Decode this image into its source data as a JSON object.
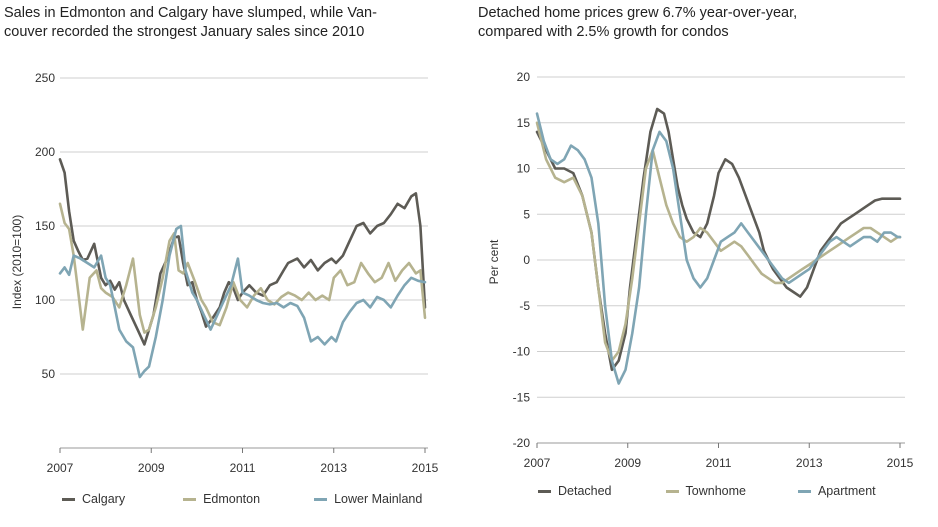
{
  "colors": {
    "dark": "#5d5b55",
    "tan": "#b6b38f",
    "blue": "#7fa5b4",
    "grid": "#cfcfcf"
  },
  "chart_data": [
    {
      "type": "line",
      "title": "Sales in Edmonton and Calgary have slumped, while Vancouver recorded the strongest January sales since 2010",
      "title_lines": [
        "Sales in Edmonton and Calgary have slumped, while Van-",
        "couver recorded the strongest January sales since 2010"
      ],
      "xlabel": "",
      "ylabel": "Index (2010=100)",
      "xlim": [
        2007,
        2015
      ],
      "ylim": [
        0,
        250
      ],
      "yticks": [
        50,
        100,
        150,
        200,
        250
      ],
      "xticks": [
        2007,
        2009,
        2011,
        2013,
        2015
      ],
      "xtick_labels": [
        "2007",
        "2009",
        "2011",
        "2013",
        "2015"
      ],
      "grid": true,
      "legend": "bottom",
      "series": [
        {
          "name": "Calgary",
          "color": "#5d5b55",
          "x": [
            2007.0,
            2007.1,
            2007.2,
            2007.3,
            2007.4,
            2007.5,
            2007.6,
            2007.75,
            2007.9,
            2008.0,
            2008.1,
            2008.2,
            2008.3,
            2008.4,
            2008.55,
            2008.7,
            2008.85,
            2008.95,
            2009.05,
            2009.2,
            2009.35,
            2009.5,
            2009.6,
            2009.7,
            2009.8,
            2009.9,
            2010.0,
            2010.1,
            2010.2,
            2010.35,
            2010.5,
            2010.6,
            2010.7,
            2010.8,
            2010.9,
            2011.0,
            2011.15,
            2011.3,
            2011.45,
            2011.6,
            2011.75,
            2011.9,
            2012.0,
            2012.2,
            2012.35,
            2012.5,
            2012.65,
            2012.8,
            2012.95,
            2013.05,
            2013.2,
            2013.35,
            2013.5,
            2013.65,
            2013.8,
            2013.95,
            2014.1,
            2014.25,
            2014.4,
            2014.55,
            2014.7,
            2014.8,
            2014.9,
            2015.0
          ],
          "y": [
            195,
            186,
            160,
            140,
            133,
            127,
            128,
            138,
            115,
            110,
            113,
            107,
            112,
            100,
            90,
            80,
            70,
            80,
            90,
            118,
            128,
            142,
            143,
            125,
            110,
            112,
            100,
            92,
            82,
            88,
            95,
            105,
            112,
            108,
            100,
            105,
            110,
            105,
            103,
            110,
            112,
            120,
            125,
            128,
            122,
            127,
            120,
            125,
            128,
            125,
            130,
            140,
            150,
            152,
            145,
            150,
            152,
            158,
            165,
            162,
            170,
            172,
            150,
            95
          ]
        },
        {
          "name": "Edmonton",
          "color": "#b6b38f",
          "x": [
            2007.0,
            2007.1,
            2007.2,
            2007.3,
            2007.4,
            2007.5,
            2007.65,
            2007.8,
            2007.9,
            2008.0,
            2008.15,
            2008.3,
            2008.45,
            2008.6,
            2008.75,
            2008.85,
            2008.95,
            2009.1,
            2009.25,
            2009.4,
            2009.5,
            2009.6,
            2009.7,
            2009.8,
            2009.95,
            2010.1,
            2010.2,
            2010.35,
            2010.5,
            2010.65,
            2010.8,
            2010.95,
            2011.1,
            2011.25,
            2011.4,
            2011.55,
            2011.7,
            2011.85,
            2012.0,
            2012.15,
            2012.3,
            2012.45,
            2012.6,
            2012.75,
            2012.9,
            2013.0,
            2013.15,
            2013.3,
            2013.45,
            2013.6,
            2013.75,
            2013.9,
            2014.05,
            2014.2,
            2014.35,
            2014.5,
            2014.65,
            2014.8,
            2014.9,
            2015.0
          ],
          "y": [
            165,
            152,
            148,
            130,
            105,
            80,
            115,
            120,
            108,
            105,
            102,
            95,
            110,
            128,
            90,
            78,
            80,
            95,
            115,
            140,
            145,
            120,
            118,
            125,
            113,
            100,
            95,
            85,
            83,
            95,
            112,
            100,
            95,
            103,
            108,
            100,
            97,
            102,
            105,
            103,
            100,
            105,
            100,
            103,
            100,
            115,
            120,
            110,
            112,
            125,
            118,
            112,
            115,
            125,
            113,
            120,
            125,
            118,
            120,
            88
          ]
        },
        {
          "name": "Lower Mainland",
          "color": "#7fa5b4",
          "x": [
            2007.0,
            2007.1,
            2007.2,
            2007.3,
            2007.45,
            2007.6,
            2007.75,
            2007.9,
            2008.0,
            2008.1,
            2008.2,
            2008.3,
            2008.45,
            2008.6,
            2008.75,
            2008.85,
            2008.95,
            2009.1,
            2009.25,
            2009.4,
            2009.55,
            2009.65,
            2009.75,
            2009.9,
            2010.0,
            2010.15,
            2010.3,
            2010.45,
            2010.6,
            2010.75,
            2010.9,
            2011.0,
            2011.15,
            2011.3,
            2011.45,
            2011.6,
            2011.75,
            2011.9,
            2012.05,
            2012.2,
            2012.35,
            2012.5,
            2012.65,
            2012.8,
            2012.95,
            2013.05,
            2013.2,
            2013.35,
            2013.5,
            2013.65,
            2013.8,
            2013.95,
            2014.1,
            2014.25,
            2014.4,
            2014.55,
            2014.7,
            2014.85,
            2015.0
          ],
          "y": [
            118,
            122,
            117,
            130,
            128,
            125,
            122,
            130,
            115,
            110,
            95,
            80,
            72,
            68,
            48,
            52,
            55,
            75,
            100,
            130,
            148,
            150,
            120,
            105,
            100,
            90,
            80,
            90,
            100,
            110,
            128,
            105,
            103,
            100,
            98,
            97,
            98,
            95,
            98,
            96,
            88,
            72,
            75,
            70,
            75,
            72,
            85,
            92,
            98,
            100,
            95,
            102,
            100,
            95,
            103,
            110,
            115,
            113,
            112
          ]
        }
      ]
    },
    {
      "type": "line",
      "title": "Detached home prices grew 6.7% year-over-year, compared with 2.5% growth for condos",
      "title_lines": [
        "Detached home prices grew 6.7% year-over-year,",
        "compared with 2.5% growth for condos"
      ],
      "xlabel": "",
      "ylabel": "Per cent",
      "xlim": [
        2007,
        2015
      ],
      "ylim": [
        -20,
        20
      ],
      "yticks": [
        -20,
        -15,
        -10,
        -5,
        0,
        5,
        10,
        15,
        20
      ],
      "ytick_labels": [
        "-20",
        "-15",
        "-10",
        "-5",
        "0",
        "5",
        "10",
        "15",
        "20"
      ],
      "xticks": [
        2007,
        2009,
        2011,
        2013,
        2015
      ],
      "xtick_labels": [
        "2007",
        "2009",
        "2011",
        "2013",
        "2015"
      ],
      "grid": true,
      "legend": "bottom",
      "series": [
        {
          "name": "Detached",
          "color": "#5d5b55",
          "x": [
            2007.0,
            2007.2,
            2007.4,
            2007.6,
            2007.8,
            2008.0,
            2008.2,
            2008.35,
            2008.5,
            2008.65,
            2008.8,
            2008.95,
            2009.05,
            2009.2,
            2009.35,
            2009.5,
            2009.65,
            2009.8,
            2009.9,
            2010.0,
            2010.1,
            2010.2,
            2010.3,
            2010.45,
            2010.6,
            2010.75,
            2010.9,
            2011.0,
            2011.15,
            2011.3,
            2011.45,
            2011.6,
            2011.75,
            2011.9,
            2012.0,
            2012.1,
            2012.2,
            2012.35,
            2012.5,
            2012.65,
            2012.8,
            2012.95,
            2013.1,
            2013.25,
            2013.4,
            2013.55,
            2013.7,
            2013.85,
            2014.0,
            2014.15,
            2014.3,
            2014.45,
            2014.6,
            2014.75,
            2014.9,
            2015.0
          ],
          "y": [
            14,
            12,
            10,
            10,
            9.5,
            7,
            3,
            -3,
            -8,
            -12,
            -11,
            -8,
            -3,
            3,
            9,
            14,
            16.5,
            16,
            14,
            11,
            8,
            6,
            4.5,
            3,
            2.5,
            4,
            7,
            9.5,
            11,
            10.5,
            9,
            7,
            5,
            3,
            1,
            0,
            -1,
            -2,
            -3,
            -3.5,
            -4,
            -3,
            -1,
            1,
            2,
            3,
            4,
            4.5,
            5,
            5.5,
            6,
            6.5,
            6.7,
            6.7,
            6.7,
            6.7
          ]
        },
        {
          "name": "Townhome",
          "color": "#b6b38f",
          "x": [
            2007.0,
            2007.2,
            2007.4,
            2007.6,
            2007.8,
            2008.0,
            2008.2,
            2008.35,
            2008.5,
            2008.65,
            2008.8,
            2008.95,
            2009.1,
            2009.25,
            2009.4,
            2009.55,
            2009.7,
            2009.85,
            2010.0,
            2010.15,
            2010.3,
            2010.45,
            2010.6,
            2010.75,
            2010.9,
            2011.05,
            2011.2,
            2011.35,
            2011.5,
            2011.65,
            2011.8,
            2011.95,
            2012.1,
            2012.25,
            2012.4,
            2012.55,
            2012.7,
            2012.85,
            2013.0,
            2013.15,
            2013.3,
            2013.45,
            2013.6,
            2013.75,
            2013.9,
            2014.05,
            2014.2,
            2014.35,
            2014.5,
            2014.65,
            2014.8,
            2014.95,
            2015.0
          ],
          "y": [
            15,
            11,
            9,
            8.5,
            9,
            7,
            3,
            -3,
            -9,
            -11,
            -10,
            -7,
            -2,
            4,
            10,
            12,
            9,
            6,
            4,
            2.5,
            2,
            2.5,
            3.5,
            3,
            2,
            1,
            1.5,
            2,
            1.5,
            0.5,
            -0.5,
            -1.5,
            -2,
            -2.5,
            -2.5,
            -2,
            -1.5,
            -1,
            -0.5,
            0,
            0.5,
            1,
            1.5,
            2,
            2.5,
            3,
            3.5,
            3.5,
            3,
            2.5,
            2,
            2.5,
            2.5
          ]
        },
        {
          "name": "Apartment",
          "color": "#7fa5b4",
          "x": [
            2007.0,
            2007.15,
            2007.3,
            2007.45,
            2007.6,
            2007.75,
            2007.9,
            2008.05,
            2008.2,
            2008.35,
            2008.5,
            2008.65,
            2008.8,
            2008.95,
            2009.1,
            2009.25,
            2009.4,
            2009.55,
            2009.7,
            2009.85,
            2010.0,
            2010.15,
            2010.3,
            2010.45,
            2010.6,
            2010.75,
            2010.9,
            2011.05,
            2011.2,
            2011.35,
            2011.5,
            2011.65,
            2011.8,
            2011.95,
            2012.1,
            2012.25,
            2012.4,
            2012.55,
            2012.7,
            2012.85,
            2013.0,
            2013.15,
            2013.3,
            2013.45,
            2013.6,
            2013.75,
            2013.9,
            2014.05,
            2014.2,
            2014.35,
            2014.5,
            2014.65,
            2014.8,
            2014.95,
            2015.0
          ],
          "y": [
            16,
            13,
            11,
            10.5,
            11,
            12.5,
            12,
            11,
            9,
            4,
            -5,
            -11,
            -13.5,
            -12,
            -8,
            -3,
            5,
            12,
            14,
            13,
            10,
            5,
            0,
            -2,
            -3,
            -2,
            0,
            2,
            2.5,
            3,
            4,
            3,
            2,
            1,
            0,
            -1,
            -2,
            -2.5,
            -2,
            -1.5,
            -1,
            0,
            1,
            2,
            2.5,
            2,
            1.5,
            2,
            2.5,
            2.5,
            2,
            3,
            3,
            2.5,
            2.5
          ]
        }
      ]
    }
  ]
}
